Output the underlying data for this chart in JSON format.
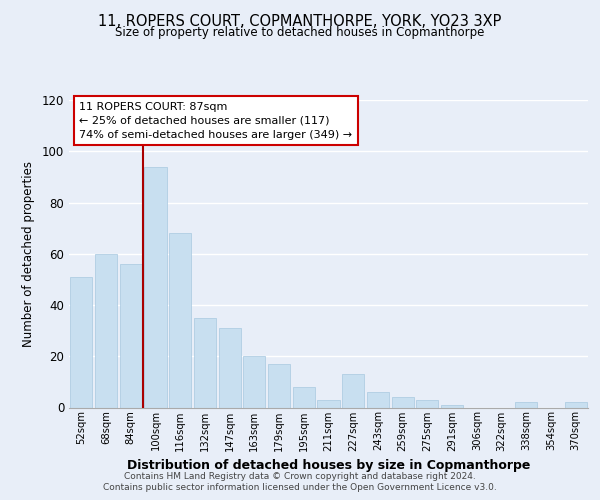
{
  "title": "11, ROPERS COURT, COPMANTHORPE, YORK, YO23 3XP",
  "subtitle": "Size of property relative to detached houses in Copmanthorpe",
  "xlabel": "Distribution of detached houses by size in Copmanthorpe",
  "ylabel": "Number of detached properties",
  "footer1": "Contains HM Land Registry data © Crown copyright and database right 2024.",
  "footer2": "Contains public sector information licensed under the Open Government Licence v3.0.",
  "bar_labels": [
    "52sqm",
    "68sqm",
    "84sqm",
    "100sqm",
    "116sqm",
    "132sqm",
    "147sqm",
    "163sqm",
    "179sqm",
    "195sqm",
    "211sqm",
    "227sqm",
    "243sqm",
    "259sqm",
    "275sqm",
    "291sqm",
    "306sqm",
    "322sqm",
    "338sqm",
    "354sqm",
    "370sqm"
  ],
  "bar_values": [
    51,
    60,
    56,
    94,
    68,
    35,
    31,
    20,
    17,
    8,
    3,
    13,
    6,
    4,
    3,
    1,
    0,
    0,
    2,
    0,
    2
  ],
  "bar_color": "#c8dff0",
  "bar_edge_color": "#a8c8e0",
  "vline_color": "#aa0000",
  "annotation_title": "11 ROPERS COURT: 87sqm",
  "annotation_line1": "← 25% of detached houses are smaller (117)",
  "annotation_line2": "74% of semi-detached houses are larger (349) →",
  "annotation_box_color": "#ffffff",
  "annotation_box_edge": "#cc0000",
  "ylim": [
    0,
    120
  ],
  "yticks": [
    0,
    20,
    40,
    60,
    80,
    100,
    120
  ],
  "background_color": "#e8eef8",
  "plot_bg_color": "#e8eef8",
  "grid_color": "#ffffff"
}
